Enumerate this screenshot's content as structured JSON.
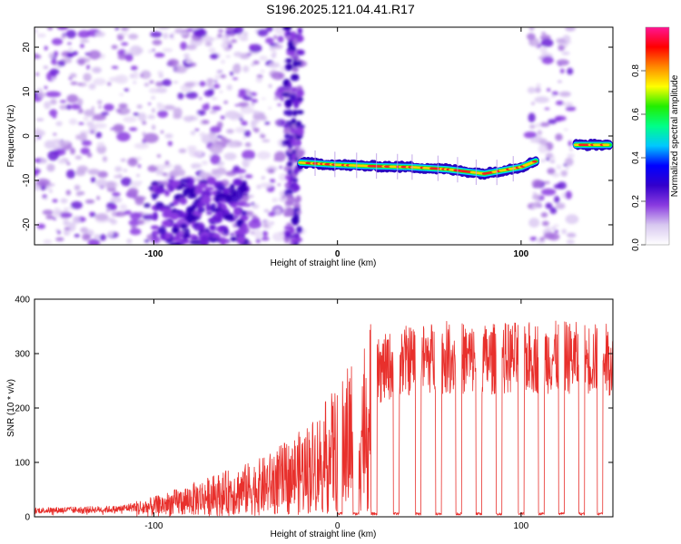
{
  "title": "S196.2025.121.04.41.R17",
  "colors": {
    "snr_line": "#e8302c",
    "axis": "#000000",
    "background": "#ffffff"
  },
  "chart_data": [
    {
      "type": "heatmap",
      "title": "S196.2025.121.04.41.R17",
      "xlabel": "Height of straight line (km)",
      "ylabel": "Frequency (Hz)",
      "xlim": [
        -165,
        150
      ],
      "ylim": [
        -24.5,
        24.5
      ],
      "x_ticks": [
        -100,
        0,
        100
      ],
      "y_ticks": [
        -20,
        -10,
        0,
        10,
        20
      ],
      "grid": false,
      "colorbar": {
        "label": "Normalized spectral amplitude",
        "range": [
          0.0,
          1.0
        ],
        "ticks": [
          "0.0",
          "0.2",
          "0.4",
          "0.6",
          "0.8"
        ],
        "colors": [
          "#ffffff",
          "#d8c8f0",
          "#8a3be0",
          "#3300cc",
          "#0000ff",
          "#00c8ff",
          "#00ff88",
          "#22ee00",
          "#ffff00",
          "#ff8800",
          "#ff0000",
          "#ff1493"
        ]
      },
      "ridge": {
        "description_points": [
          {
            "x": -20,
            "y": -6
          },
          {
            "x": 0,
            "y": -6.5
          },
          {
            "x": 20,
            "y": -6.8
          },
          {
            "x": 40,
            "y": -7
          },
          {
            "x": 60,
            "y": -7.5
          },
          {
            "x": 80,
            "y": -8.5
          },
          {
            "x": 100,
            "y": -7
          },
          {
            "x": 130,
            "y": -2
          },
          {
            "x": 145,
            "y": -2
          }
        ]
      },
      "noise_regions": [
        {
          "x_from": -165,
          "x_to": -20,
          "y_from": -24.5,
          "y_to": 24.5
        },
        {
          "x_from": 105,
          "x_to": 128,
          "y_from": -24.5,
          "y_to": 24.5
        }
      ]
    },
    {
      "type": "line",
      "xlabel": "Height of straight line (km)",
      "ylabel": "SNR (10 * v/v)",
      "xlim": [
        -165,
        150
      ],
      "ylim": [
        0,
        400
      ],
      "x_ticks": [
        -100,
        0,
        100
      ],
      "y_ticks": [
        0,
        100,
        200,
        300,
        400
      ],
      "grid": false,
      "series": [
        {
          "color": "#e8302c",
          "trend": [
            {
              "x": -165,
              "y": 15
            },
            {
              "x": -120,
              "y": 18
            },
            {
              "x": -100,
              "y": 30
            },
            {
              "x": -80,
              "y": 50
            },
            {
              "x": -60,
              "y": 70
            },
            {
              "x": -40,
              "y": 90
            },
            {
              "x": -20,
              "y": 130
            },
            {
              "x": -10,
              "y": 160
            },
            {
              "x": 0,
              "y": 200
            },
            {
              "x": 10,
              "y": 250
            },
            {
              "x": 20,
              "y": 300
            },
            {
              "x": 30,
              "y": 320
            },
            {
              "x": 40,
              "y": 330
            },
            {
              "x": 60,
              "y": 335
            },
            {
              "x": 80,
              "y": 330
            },
            {
              "x": 100,
              "y": 335
            },
            {
              "x": 120,
              "y": 335
            },
            {
              "x": 150,
              "y": 330
            }
          ],
          "dropouts_x": [
            1,
            10,
            20,
            32,
            44,
            55,
            66,
            77,
            88,
            100,
            111,
            122,
            133,
            143
          ]
        }
      ]
    }
  ]
}
